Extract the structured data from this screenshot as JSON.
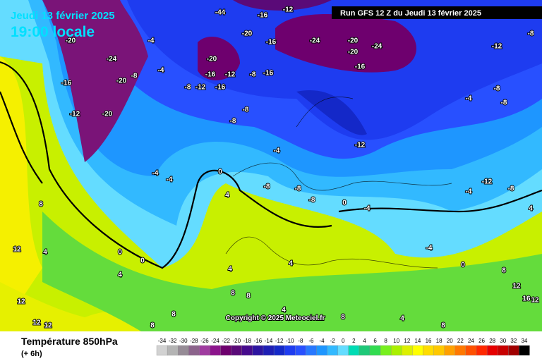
{
  "header": {
    "date": "Jeudi 13 février 2025",
    "time": "19:00 locale",
    "run": "Run GFS 12 Z du Jeudi 13 février 2025"
  },
  "copyright": "Copyright © 2025 Meteociel.fr",
  "footer": {
    "title": "Température 850hPa",
    "lead": "(+ 6h)"
  },
  "legend": {
    "ticks": [
      -34,
      -32,
      -30,
      -28,
      -26,
      -24,
      -22,
      -20,
      -18,
      -16,
      -14,
      -12,
      -10,
      -8,
      -6,
      -4,
      -2,
      0,
      2,
      4,
      6,
      8,
      10,
      12,
      14,
      16,
      18,
      20,
      22,
      24,
      26,
      28,
      30,
      32,
      34
    ],
    "colors": [
      "#d2d2d2",
      "#b4b4b4",
      "#968c96",
      "#8c648c",
      "#a03ca0",
      "#8c148c",
      "#6e006e",
      "#5a0a78",
      "#460a8c",
      "#2d14a0",
      "#1e1eb4",
      "#1428c8",
      "#1e3cf0",
      "#2850ff",
      "#2878ff",
      "#1e96ff",
      "#32b9ff",
      "#64dcff",
      "#00dcb4",
      "#1ec878",
      "#32dc50",
      "#78f01e",
      "#aaf000",
      "#dcf000",
      "#ffff00",
      "#ffdc00",
      "#ffc800",
      "#ffa000",
      "#ff7800",
      "#ff5000",
      "#ff2800",
      "#e60000",
      "#c80000",
      "#a00000",
      "#000000"
    ]
  },
  "map": {
    "contour_labels": [
      -44,
      -16,
      -12,
      -20,
      -16,
      -24,
      -24,
      -20,
      -20,
      -16,
      -12,
      -8,
      -20,
      -24,
      -20,
      -16,
      -12,
      -20,
      -4,
      -8,
      -4,
      -20,
      -16,
      -8,
      -12,
      -16,
      -12,
      -8,
      -16,
      -8,
      -8,
      -12,
      -4,
      -8,
      -8,
      -4,
      0,
      -4,
      -4,
      4,
      -8,
      -8,
      -8,
      0,
      -4,
      -4,
      0,
      0,
      0,
      4,
      8,
      4,
      12,
      12,
      12,
      12,
      4,
      4,
      8,
      8,
      8,
      8,
      4,
      8,
      4,
      8,
      8,
      12,
      16,
      12,
      -4,
      -12,
      -8,
      4
    ]
  }
}
